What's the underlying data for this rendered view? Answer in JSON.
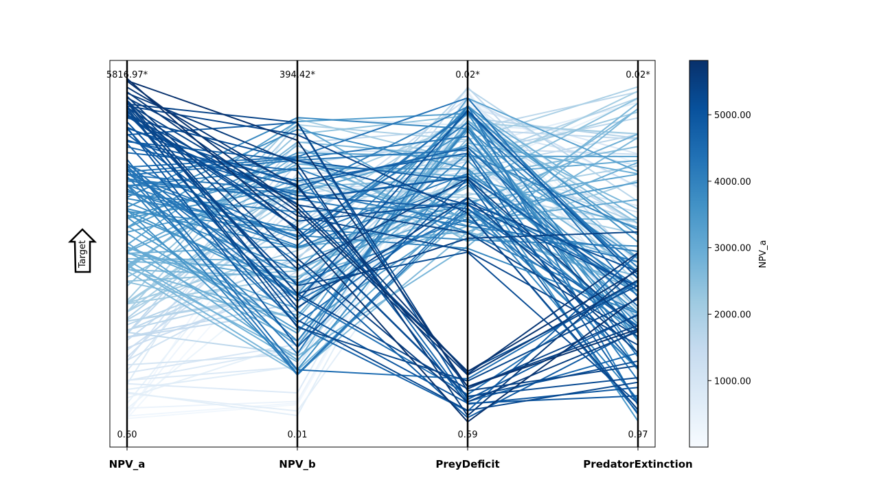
{
  "chart_data": {
    "type": "parallel_coordinates",
    "axes": [
      {
        "name": "NPV_a",
        "top_label": "5816.97*",
        "bottom_label": "0.60"
      },
      {
        "name": "NPV_b",
        "top_label": "394.42*",
        "bottom_label": "0.01"
      },
      {
        "name": "PreyDeficit",
        "top_label": "0.02*",
        "bottom_label": "0.59"
      },
      {
        "name": "PredatorExtinction",
        "top_label": "0.02*",
        "bottom_label": "0.97"
      }
    ],
    "colorbar": {
      "label": "NPV_a",
      "colormap": "Blues",
      "ticks": [
        "1000.00",
        "2000.00",
        "3000.00",
        "4000.00",
        "5000.00"
      ],
      "tick_values": [
        1000,
        2000,
        3000,
        4000,
        5000
      ],
      "min": 0.6,
      "max": 5816.97
    },
    "direction_indicator": "Target",
    "series_count": 150
  }
}
